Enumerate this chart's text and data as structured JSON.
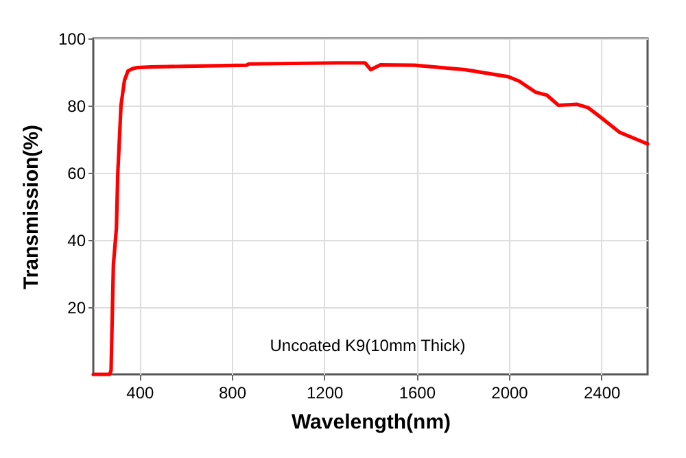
{
  "chart_data": {
    "type": "line",
    "xlabel": "Wavelength(nm)",
    "ylabel": "Transmission(%)",
    "annotations": [
      "Uncoated K9(10mm Thick)"
    ],
    "x": [
      200,
      271,
      277,
      287,
      300,
      306,
      320,
      335,
      350,
      370,
      389,
      450,
      600,
      863,
      873,
      1000,
      1257,
      1377,
      1401,
      1443,
      1591,
      1810,
      1997,
      2046,
      2115,
      2164,
      2214,
      2293,
      2342,
      2401,
      2480,
      2589,
      2600
    ],
    "series": [
      {
        "color": "#ff0000",
        "values": [
          0,
          0,
          1.2,
          32.6,
          43.4,
          59.7,
          80.1,
          87.5,
          90.3,
          91,
          91.3,
          91.5,
          91.7,
          92,
          92.4,
          92.5,
          92.7,
          92.7,
          90.7,
          92.1,
          92,
          90.7,
          88.6,
          87.2,
          84,
          83.1,
          80.1,
          80.4,
          79.4,
          76.3,
          72,
          68.9,
          68.6
        ]
      }
    ],
    "xlim": [
      200,
      2600
    ],
    "ylim": [
      0,
      100
    ],
    "xticks": [
      400,
      800,
      1200,
      1600,
      2000,
      2400
    ],
    "yticks": [
      20,
      40,
      60,
      80,
      100
    ],
    "grid": true,
    "marker": "none",
    "line_style": "solid"
  }
}
